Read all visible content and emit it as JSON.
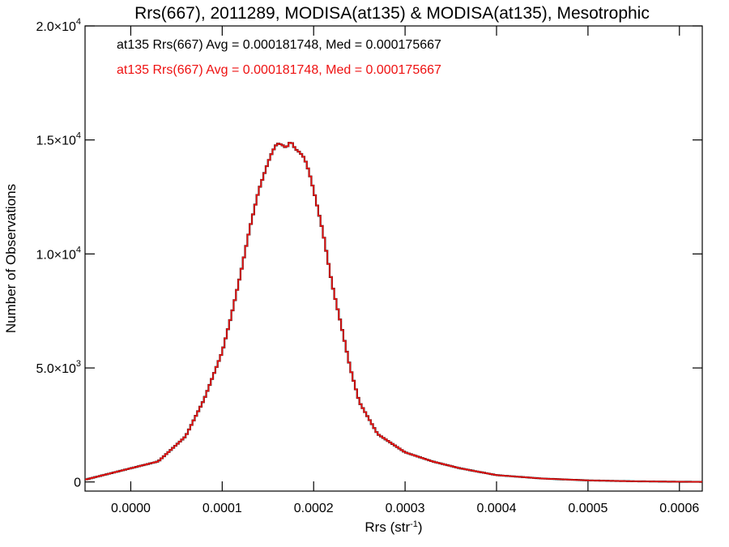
{
  "chart_data": {
    "type": "histogram",
    "title": "Rrs(667), 2011289, MODISA(at135) & MODISA(at135), Mesotrophic",
    "xlabel_base": "Rrs (str",
    "xlabel_sup": "-1",
    "xlabel_end": ")",
    "ylabel": "Number of Observations",
    "xlim": [
      -5e-05,
      0.000625
    ],
    "ylim": [
      -400,
      20000
    ],
    "x_ticks": [
      {
        "value": 0.0,
        "label": "0.0000"
      },
      {
        "value": 0.0001,
        "label": "0.0001"
      },
      {
        "value": 0.0002,
        "label": "0.0002"
      },
      {
        "value": 0.0003,
        "label": "0.0003"
      },
      {
        "value": 0.0004,
        "label": "0.0004"
      },
      {
        "value": 0.0005,
        "label": "0.0005"
      },
      {
        "value": 0.0006,
        "label": "0.0006"
      }
    ],
    "y_ticks": [
      {
        "value": 0,
        "base": "0",
        "sup": ""
      },
      {
        "value": 5000,
        "base": "5.0×10",
        "sup": "3"
      },
      {
        "value": 10000,
        "base": "1.0×10",
        "sup": "4"
      },
      {
        "value": 15000,
        "base": "1.5×10",
        "sup": "4"
      },
      {
        "value": 20000,
        "base": "2.0×10",
        "sup": "4"
      }
    ],
    "annotations": [
      {
        "text": "at135 Rrs(667) Avg = 0.000181748, Med = 0.000175667",
        "color": "#000000"
      },
      {
        "text": "at135 Rrs(667) Avg = 0.000181748, Med = 0.000175667",
        "color": "#ee1111"
      }
    ],
    "series": [
      {
        "color": "#ee1111",
        "x": [
          -5e-05,
          3e-05,
          6e-05,
          8e-05,
          0.0001,
          0.00011,
          0.00012,
          0.00013,
          0.00014,
          0.00015,
          0.000155,
          0.00016,
          0.000165,
          0.00017,
          0.000175,
          0.00018,
          0.000185,
          0.00019,
          0.000195,
          0.0002,
          0.00021,
          0.00022,
          0.00023,
          0.00024,
          0.00025,
          0.00027,
          0.0003,
          0.00033,
          0.00036,
          0.0004,
          0.00045,
          0.0005,
          0.00055,
          0.0006,
          0.000625
        ],
        "y": [
          100,
          900,
          2000,
          3600,
          5700,
          7300,
          9100,
          11100,
          12800,
          14000,
          14500,
          14850,
          14800,
          14650,
          14950,
          14600,
          14450,
          14200,
          13600,
          12800,
          11000,
          8700,
          6900,
          5000,
          3500,
          2100,
          1300,
          900,
          600,
          300,
          150,
          70,
          30,
          10,
          5
        ]
      }
    ]
  }
}
